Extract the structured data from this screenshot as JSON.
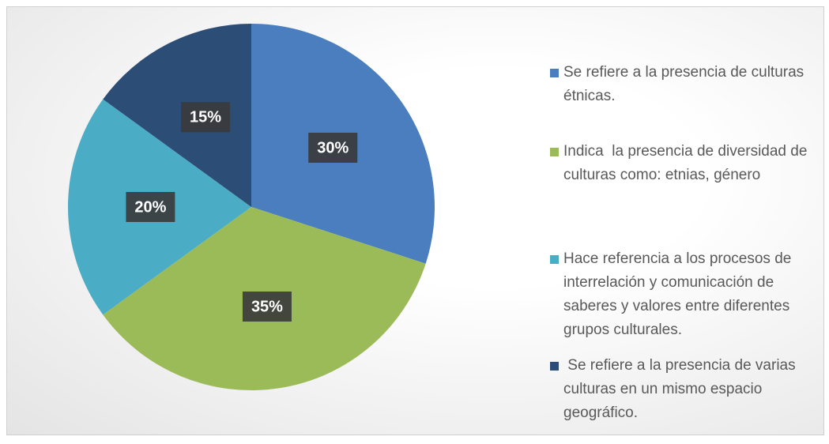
{
  "chart_data": {
    "type": "pie",
    "categories": [
      "Se refiere a la presencia de culturas étnicas.",
      "Indica  la presencia de diversidad de culturas como: etnias, género",
      "Hace referencia a los procesos de interrelación y comunicación de saberes y valores entre diferentes grupos culturales.",
      " Se refiere a la presencia de varias culturas en un mismo espacio geográfico."
    ],
    "values": [
      30,
      35,
      20,
      15
    ],
    "value_labels": [
      "30%",
      "35%",
      "20%",
      "15%"
    ],
    "colors": [
      "#4a7ebf",
      "#9bbb59",
      "#4bacc6",
      "#2c4d75"
    ],
    "legend": "right"
  }
}
